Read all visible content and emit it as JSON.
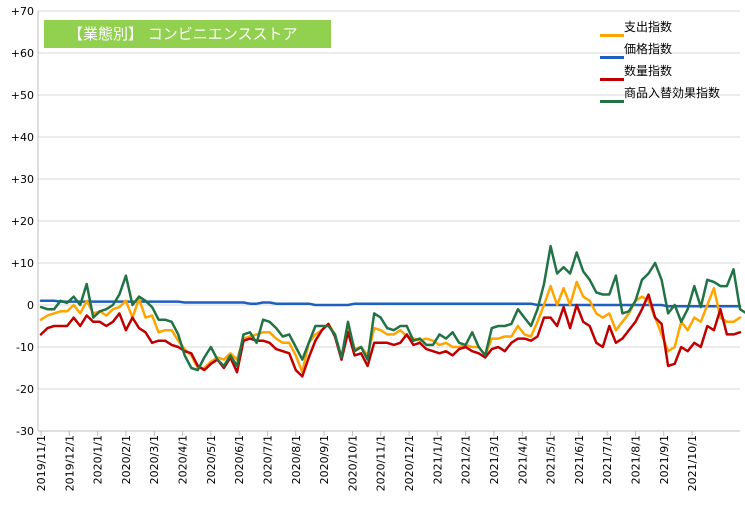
{
  "chart_data": {
    "type": "line",
    "title": "【業態別】 コンビニエンスストア",
    "title_bg_color": "#92d050",
    "grid": true,
    "legend_position": "top-right",
    "ylim": [
      -30,
      70
    ],
    "y_ticks": [
      "+70",
      "+60",
      "+50",
      "+40",
      "+30",
      "+20",
      "+10",
      "0",
      "-10",
      "-20",
      "-30"
    ],
    "x_ticks": [
      "2019/11/1",
      "2019/12/1",
      "2020/1/1",
      "2020/2/1",
      "2020/3/1",
      "2020/4/1",
      "2020/5/1",
      "2020/6/1",
      "2020/7/1",
      "2020/8/1",
      "2020/9/1",
      "2020/10/1",
      "2020/11/1",
      "2020/12/1",
      "2021/1/1",
      "2021/2/1",
      "2021/3/1",
      "2021/4/1",
      "2021/5/1",
      "2021/6/1",
      "2021/7/1",
      "2021/8/1",
      "2021/9/1",
      "2021/10/1"
    ],
    "x_tick_positions": [
      0,
      4.33,
      8.67,
      13,
      17.33,
      21.67,
      26,
      30.33,
      34.67,
      39,
      43.33,
      47.67,
      52,
      56.33,
      60.67,
      65,
      69.33,
      73.67,
      78,
      82.33,
      86.67,
      91,
      95.33,
      99.67
    ],
    "series": [
      {
        "name": "支出指数",
        "color": "#ffa500",
        "values": [
          -3.5,
          -2.5,
          -2,
          -1.5,
          -1.5,
          0,
          -2,
          1,
          -2,
          -1.5,
          -2.5,
          -1,
          -0.5,
          1,
          -3,
          1.5,
          -3,
          -2.5,
          -6.5,
          -6,
          -6,
          -8.5,
          -10.5,
          -12,
          -15,
          -15,
          -13.5,
          -12.5,
          -13,
          -11.5,
          -13,
          -8,
          -7.5,
          -7,
          -6.5,
          -6.5,
          -8,
          -9,
          -9,
          -12,
          -16,
          -9,
          -7,
          -6,
          -4.5,
          -7,
          -13,
          -5,
          -10.5,
          -10,
          -12,
          -5.5,
          -6,
          -7,
          -7,
          -6,
          -7.5,
          -8,
          -8.5,
          -8,
          -8.5,
          -9.5,
          -9,
          -10,
          -10,
          -9.5,
          -10,
          -10,
          -12,
          -8,
          -8,
          -7.5,
          -7.5,
          -5,
          -7,
          -7.5,
          -4,
          0,
          4.5,
          0,
          4,
          0,
          5.5,
          2,
          1,
          -2,
          -3,
          -2,
          -6,
          -4,
          -2,
          1,
          2,
          1,
          -3,
          -7,
          -11,
          -10,
          -4,
          -6,
          -3,
          -4,
          0,
          4,
          -3,
          -4,
          -4,
          -3
        ],
        "label": "支出指数"
      },
      {
        "name": "価格指数",
        "color": "#1f5fbf",
        "values": [
          1,
          1,
          1,
          0.8,
          0.8,
          0.8,
          0.8,
          0.8,
          0.8,
          0.8,
          0.8,
          0.8,
          0.8,
          0.8,
          0.8,
          0.8,
          0.8,
          0.8,
          0.8,
          0.8,
          0.8,
          0.8,
          0.6,
          0.6,
          0.6,
          0.6,
          0.6,
          0.6,
          0.6,
          0.6,
          0.6,
          0.6,
          0.3,
          0.3,
          0.6,
          0.6,
          0.3,
          0.3,
          0.3,
          0.3,
          0.3,
          0.3,
          0,
          0,
          0,
          0,
          0,
          0,
          0.3,
          0.3,
          0.3,
          0.3,
          0.3,
          0.3,
          0.3,
          0.3,
          0.3,
          0.3,
          0.3,
          0.3,
          0.3,
          0.3,
          0.3,
          0.3,
          0.3,
          0.3,
          0.3,
          0.3,
          0.3,
          0.3,
          0.3,
          0.3,
          0.3,
          0.3,
          0.3,
          0.3,
          0,
          0,
          0,
          0,
          0,
          0,
          0,
          0,
          0,
          0,
          0,
          0,
          0,
          0,
          0,
          0,
          0,
          0,
          0,
          0,
          -0.3,
          -0.3,
          -0.3,
          -0.3,
          -0.3,
          -0.3,
          -0.3,
          -0.3,
          -0.3,
          -0.3,
          -0.3,
          -0.3
        ],
        "label": "価格指数"
      },
      {
        "name": "数量指数",
        "color": "#c00000",
        "values": [
          -7,
          -5.5,
          -5,
          -5,
          -5,
          -3,
          -5,
          -2.5,
          -4,
          -4,
          -5,
          -4,
          -2,
          -6,
          -3,
          -5.5,
          -6.5,
          -9,
          -8.5,
          -8.5,
          -9.5,
          -10,
          -11,
          -11.5,
          -14.5,
          -15.5,
          -14,
          -13,
          -15,
          -12.5,
          -16,
          -8.5,
          -8,
          -8.5,
          -8.5,
          -9,
          -10.5,
          -11,
          -11.5,
          -15.5,
          -17,
          -12.5,
          -8.5,
          -6,
          -4.5,
          -7.5,
          -13,
          -6.5,
          -12,
          -11.5,
          -14.5,
          -9,
          -9,
          -9,
          -9.5,
          -9,
          -7,
          -9.5,
          -9,
          -10.5,
          -11,
          -11.5,
          -11,
          -12,
          -10.5,
          -10,
          -11,
          -11.5,
          -12.5,
          -10.5,
          -10,
          -11,
          -9,
          -8,
          -8,
          -8.5,
          -7.5,
          -3,
          -3,
          -5,
          -0.5,
          -5.5,
          0,
          -4,
          -5,
          -9,
          -10,
          -5,
          -9,
          -8,
          -6,
          -4,
          -1,
          2.5,
          -3,
          -4.5,
          -14.5,
          -14,
          -10,
          -11,
          -9,
          -10,
          -5,
          -6,
          -1,
          -7,
          -7,
          -6.5
        ],
        "label": "数量指数"
      },
      {
        "name": "商品入替効果指数",
        "color": "#217346",
        "values": [
          -0.5,
          -1,
          -1,
          1,
          0.5,
          2,
          0,
          5,
          -3,
          -1.5,
          -1,
          0,
          2.5,
          7,
          0,
          2,
          1,
          -0.5,
          -3.5,
          -3.5,
          -4,
          -7,
          -12,
          -15,
          -15.5,
          -12.5,
          -10,
          -13,
          -14.5,
          -12,
          -14.5,
          -7,
          -6.5,
          -9,
          -3.5,
          -4,
          -5.5,
          -7.5,
          -7,
          -10,
          -13,
          -9,
          -5,
          -5,
          -5,
          -7,
          -12.5,
          -4,
          -11,
          -10,
          -13,
          -2,
          -3,
          -5.5,
          -6,
          -5,
          -5,
          -8.5,
          -8,
          -9.5,
          -9.5,
          -7,
          -8,
          -6.5,
          -9,
          -9.5,
          -6.5,
          -10,
          -12,
          -5.5,
          -5,
          -5,
          -4.5,
          -1,
          -3,
          -5,
          -1,
          5,
          14,
          7.5,
          9,
          7.5,
          12.5,
          8,
          6,
          3,
          2.5,
          2.5,
          7,
          -2,
          -1.5,
          1,
          6,
          7.5,
          10,
          6,
          -2,
          0,
          -4,
          -1,
          4.5,
          -0.5,
          6,
          5.5,
          4.5,
          4.5,
          8.5,
          -1,
          -2,
          1.5
        ],
        "label": "商品入替効果指数"
      }
    ]
  }
}
